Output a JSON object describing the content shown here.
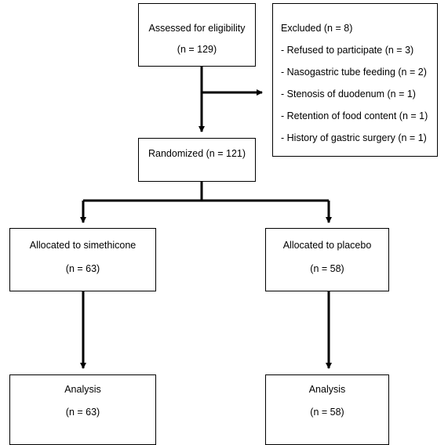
{
  "flowchart": {
    "assessed": {
      "title": "Assessed for eligibility",
      "count": "(n = 129)"
    },
    "excluded": {
      "title": "Excluded (n = 8)",
      "reasons": [
        "- Refused to participate (n = 3)",
        "- Nasogastric tube feeding (n = 2)",
        "- Stenosis of duodenum (n = 1)",
        "- Retention of food content (n = 1)",
        "- History of gastric surgery (n = 1)"
      ]
    },
    "randomized": {
      "title": "Randomized (n = 121)"
    },
    "arms": [
      {
        "allocation": "Allocated to simethicone",
        "allocation_count": "(n = 63)",
        "analysis": "Analysis",
        "analysis_count": "(n = 63)"
      },
      {
        "allocation": "Allocated to placebo",
        "allocation_count": "(n = 58)",
        "analysis": "Analysis",
        "analysis_count": "(n = 58)"
      }
    ]
  },
  "colors": {
    "line": "#000000",
    "box_border": "#000000",
    "background": "#ffffff"
  }
}
